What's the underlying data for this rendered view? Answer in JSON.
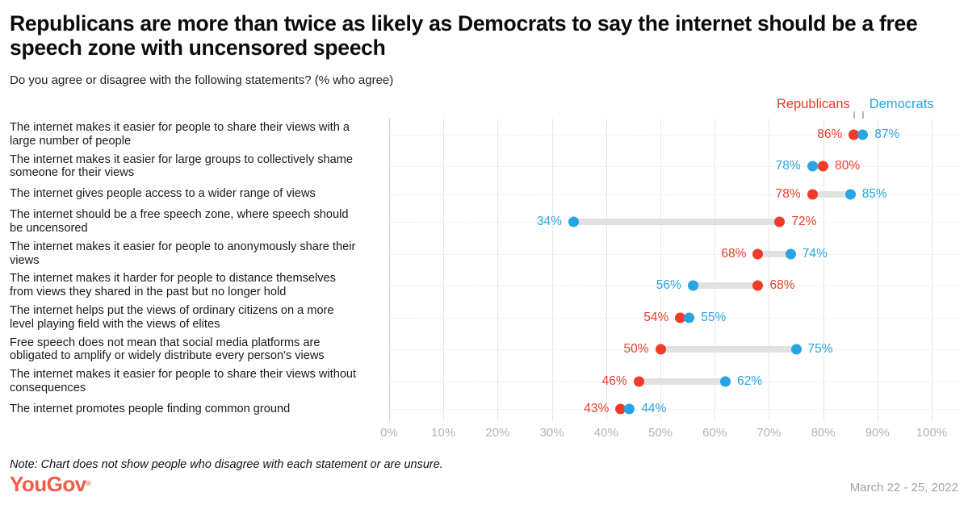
{
  "header": {
    "title": "Republicans are more than twice as likely as Democrats to say the internet should be a free speech zone with uncensored speech",
    "subtitle": "Do you agree or disagree with the following statements? (% who agree)"
  },
  "legend": {
    "republicans_label": "Republicans",
    "democrats_label": "Democrats"
  },
  "chart_data": {
    "type": "dumbbell",
    "title": "Republicans are more than twice as likely as Democrats to say the internet should be a free speech zone with uncensored speech",
    "xlabel": "% who agree",
    "xlim": [
      0,
      100
    ],
    "grid": true,
    "x_ticks": [
      0,
      10,
      20,
      30,
      40,
      50,
      60,
      70,
      80,
      90,
      100
    ],
    "x_tick_labels": [
      "0%",
      "10%",
      "20%",
      "30%",
      "40%",
      "50%",
      "60%",
      "70%",
      "80%",
      "90%",
      "100%"
    ],
    "legend_position": "top-right",
    "series": [
      {
        "name": "Republicans",
        "color": "#ee3b2a"
      },
      {
        "name": "Democrats",
        "color": "#28a3e4"
      }
    ],
    "connector_color": "#e1e1e1",
    "rows": [
      {
        "label": "The internet makes it easier for people to share their views with a large number of people",
        "republicans": 86,
        "democrats": 87
      },
      {
        "label": "The internet makes it easier for large groups to collectively shame someone for their views",
        "republicans": 80,
        "democrats": 78
      },
      {
        "label": "The internet gives people access to a wider range of views",
        "republicans": 78,
        "democrats": 85
      },
      {
        "label": "The internet should be a free speech zone, where speech should be uncensored",
        "republicans": 72,
        "democrats": 34
      },
      {
        "label": "The internet makes it easier for people to anonymously share their views",
        "republicans": 68,
        "democrats": 74
      },
      {
        "label": "The internet makes it harder for people to distance themselves from views they shared in the past but no longer hold",
        "republicans": 68,
        "democrats": 56
      },
      {
        "label": "The internet helps put the views of ordinary citizens on a more level playing field with the views of elites",
        "republicans": 54,
        "democrats": 55
      },
      {
        "label": "Free speech does not mean that social media platforms are obligated to amplify or widely distribute every person's views",
        "republicans": 50,
        "democrats": 75
      },
      {
        "label": "The internet makes it easier for people to share their views without consequences",
        "republicans": 46,
        "democrats": 62
      },
      {
        "label": "The internet promotes people finding common ground",
        "republicans": 43,
        "democrats": 44
      }
    ]
  },
  "footer": {
    "note": "Note: Chart does not show people who disagree with each statement or are unsure.",
    "brand": "YouGov",
    "registered_mark": "®",
    "date_range": "March 22 - 25, 2022",
    "brand_color": "#f05a4a"
  }
}
